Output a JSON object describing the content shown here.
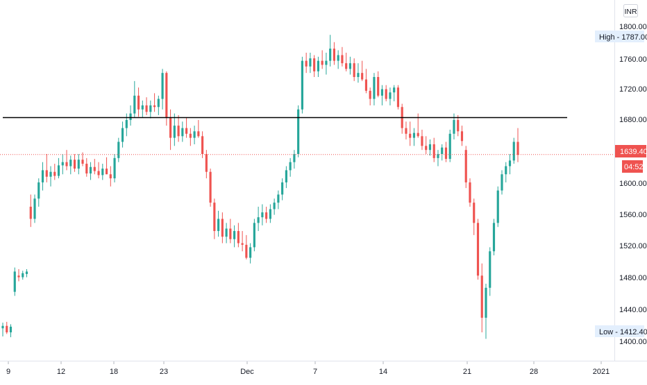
{
  "currency_label": "INR",
  "price_labels": {
    "high": "High - 1787.00",
    "low": "Low - 1412.40",
    "last": "1639.40",
    "countdown": "04:52"
  },
  "colors": {
    "up": "#26a69a",
    "down": "#ef5350",
    "horizontal_line": "#000000",
    "last_price_line": "#ef5350",
    "marker_bg": "#e3effd"
  },
  "chart_data": {
    "type": "candlestick",
    "ylim": [
      1385,
      1830
    ],
    "y_ticks": [
      "1800.00",
      "1760.00",
      "1720.00",
      "1680.00",
      "1600.00",
      "1560.00",
      "1520.00",
      "1480.00",
      "1440.00",
      "1400.00"
    ],
    "x_ticks": [
      "9",
      "12",
      "18",
      "23",
      "Dec",
      "7",
      "14",
      "21",
      "28",
      "2021"
    ],
    "horizontal_line": 1685,
    "last_price": 1639.4,
    "high": 1787.0,
    "low": 1412.4,
    "candles": [
      {
        "o": 1425,
        "h": 1432,
        "l": 1415,
        "c": 1428
      },
      {
        "o": 1428,
        "h": 1433,
        "l": 1418,
        "c": 1420
      },
      {
        "o": 1420,
        "h": 1430,
        "l": 1414,
        "c": 1427
      },
      {
        "o": 1470,
        "h": 1500,
        "l": 1465,
        "c": 1495
      },
      {
        "o": 1490,
        "h": 1498,
        "l": 1483,
        "c": 1488
      },
      {
        "o": 1488,
        "h": 1496,
        "l": 1485,
        "c": 1493
      },
      {
        "o": 1492,
        "h": 1498,
        "l": 1488,
        "c": 1495
      },
      {
        "o": 1575,
        "h": 1590,
        "l": 1550,
        "c": 1560
      },
      {
        "o": 1560,
        "h": 1590,
        "l": 1555,
        "c": 1585
      },
      {
        "o": 1585,
        "h": 1610,
        "l": 1575,
        "c": 1605
      },
      {
        "o": 1605,
        "h": 1630,
        "l": 1595,
        "c": 1620
      },
      {
        "o": 1620,
        "h": 1640,
        "l": 1605,
        "c": 1612
      },
      {
        "o": 1612,
        "h": 1625,
        "l": 1600,
        "c": 1618
      },
      {
        "o": 1618,
        "h": 1628,
        "l": 1608,
        "c": 1613
      },
      {
        "o": 1613,
        "h": 1635,
        "l": 1610,
        "c": 1626
      },
      {
        "o": 1626,
        "h": 1640,
        "l": 1615,
        "c": 1630
      },
      {
        "o": 1630,
        "h": 1645,
        "l": 1620,
        "c": 1625
      },
      {
        "o": 1625,
        "h": 1638,
        "l": 1615,
        "c": 1633
      },
      {
        "o": 1633,
        "h": 1640,
        "l": 1618,
        "c": 1622
      },
      {
        "o": 1622,
        "h": 1640,
        "l": 1615,
        "c": 1633
      },
      {
        "o": 1633,
        "h": 1642,
        "l": 1625,
        "c": 1628
      },
      {
        "o": 1628,
        "h": 1635,
        "l": 1612,
        "c": 1616
      },
      {
        "o": 1616,
        "h": 1630,
        "l": 1608,
        "c": 1624
      },
      {
        "o": 1624,
        "h": 1634,
        "l": 1615,
        "c": 1619
      },
      {
        "o": 1619,
        "h": 1630,
        "l": 1610,
        "c": 1614
      },
      {
        "o": 1614,
        "h": 1628,
        "l": 1608,
        "c": 1622
      },
      {
        "o": 1622,
        "h": 1636,
        "l": 1615,
        "c": 1615
      },
      {
        "o": 1615,
        "h": 1625,
        "l": 1600,
        "c": 1610
      },
      {
        "o": 1610,
        "h": 1640,
        "l": 1605,
        "c": 1635
      },
      {
        "o": 1635,
        "h": 1660,
        "l": 1630,
        "c": 1655
      },
      {
        "o": 1655,
        "h": 1680,
        "l": 1648,
        "c": 1672
      },
      {
        "o": 1672,
        "h": 1690,
        "l": 1662,
        "c": 1682
      },
      {
        "o": 1682,
        "h": 1700,
        "l": 1675,
        "c": 1690
      },
      {
        "o": 1690,
        "h": 1730,
        "l": 1685,
        "c": 1712
      },
      {
        "o": 1712,
        "h": 1722,
        "l": 1686,
        "c": 1695
      },
      {
        "o": 1695,
        "h": 1706,
        "l": 1685,
        "c": 1700
      },
      {
        "o": 1700,
        "h": 1710,
        "l": 1688,
        "c": 1692
      },
      {
        "o": 1692,
        "h": 1706,
        "l": 1684,
        "c": 1700
      },
      {
        "o": 1700,
        "h": 1715,
        "l": 1692,
        "c": 1698
      },
      {
        "o": 1698,
        "h": 1712,
        "l": 1688,
        "c": 1708
      },
      {
        "o": 1708,
        "h": 1745,
        "l": 1695,
        "c": 1740
      },
      {
        "o": 1740,
        "h": 1742,
        "l": 1675,
        "c": 1685
      },
      {
        "o": 1685,
        "h": 1695,
        "l": 1645,
        "c": 1660
      },
      {
        "o": 1660,
        "h": 1690,
        "l": 1650,
        "c": 1675
      },
      {
        "o": 1675,
        "h": 1688,
        "l": 1655,
        "c": 1662
      },
      {
        "o": 1662,
        "h": 1680,
        "l": 1655,
        "c": 1672
      },
      {
        "o": 1672,
        "h": 1685,
        "l": 1660,
        "c": 1665
      },
      {
        "o": 1665,
        "h": 1672,
        "l": 1650,
        "c": 1660
      },
      {
        "o": 1660,
        "h": 1675,
        "l": 1652,
        "c": 1668
      },
      {
        "o": 1668,
        "h": 1682,
        "l": 1660,
        "c": 1662
      },
      {
        "o": 1662,
        "h": 1668,
        "l": 1635,
        "c": 1640
      },
      {
        "o": 1640,
        "h": 1645,
        "l": 1610,
        "c": 1618
      },
      {
        "o": 1618,
        "h": 1622,
        "l": 1575,
        "c": 1580
      },
      {
        "o": 1580,
        "h": 1585,
        "l": 1535,
        "c": 1545
      },
      {
        "o": 1545,
        "h": 1570,
        "l": 1538,
        "c": 1560
      },
      {
        "o": 1560,
        "h": 1568,
        "l": 1530,
        "c": 1538
      },
      {
        "o": 1538,
        "h": 1555,
        "l": 1530,
        "c": 1548
      },
      {
        "o": 1548,
        "h": 1560,
        "l": 1530,
        "c": 1535
      },
      {
        "o": 1535,
        "h": 1552,
        "l": 1525,
        "c": 1545
      },
      {
        "o": 1545,
        "h": 1555,
        "l": 1525,
        "c": 1530
      },
      {
        "o": 1530,
        "h": 1545,
        "l": 1520,
        "c": 1528
      },
      {
        "o": 1528,
        "h": 1540,
        "l": 1510,
        "c": 1512
      },
      {
        "o": 1512,
        "h": 1530,
        "l": 1505,
        "c": 1525
      },
      {
        "o": 1525,
        "h": 1560,
        "l": 1520,
        "c": 1555
      },
      {
        "o": 1555,
        "h": 1575,
        "l": 1545,
        "c": 1562
      },
      {
        "o": 1562,
        "h": 1578,
        "l": 1552,
        "c": 1568
      },
      {
        "o": 1568,
        "h": 1575,
        "l": 1555,
        "c": 1560
      },
      {
        "o": 1560,
        "h": 1578,
        "l": 1555,
        "c": 1572
      },
      {
        "o": 1572,
        "h": 1585,
        "l": 1565,
        "c": 1580
      },
      {
        "o": 1580,
        "h": 1595,
        "l": 1572,
        "c": 1590
      },
      {
        "o": 1590,
        "h": 1610,
        "l": 1583,
        "c": 1605
      },
      {
        "o": 1605,
        "h": 1625,
        "l": 1598,
        "c": 1620
      },
      {
        "o": 1620,
        "h": 1635,
        "l": 1612,
        "c": 1630
      },
      {
        "o": 1630,
        "h": 1645,
        "l": 1622,
        "c": 1640
      },
      {
        "o": 1640,
        "h": 1700,
        "l": 1636,
        "c": 1695
      },
      {
        "o": 1695,
        "h": 1760,
        "l": 1690,
        "c": 1755
      },
      {
        "o": 1755,
        "h": 1765,
        "l": 1740,
        "c": 1748
      },
      {
        "o": 1748,
        "h": 1765,
        "l": 1740,
        "c": 1758
      },
      {
        "o": 1758,
        "h": 1762,
        "l": 1735,
        "c": 1742
      },
      {
        "o": 1742,
        "h": 1760,
        "l": 1735,
        "c": 1755
      },
      {
        "o": 1755,
        "h": 1768,
        "l": 1745,
        "c": 1750
      },
      {
        "o": 1750,
        "h": 1765,
        "l": 1738,
        "c": 1755
      },
      {
        "o": 1755,
        "h": 1787,
        "l": 1748,
        "c": 1770
      },
      {
        "o": 1770,
        "h": 1778,
        "l": 1750,
        "c": 1755
      },
      {
        "o": 1755,
        "h": 1768,
        "l": 1745,
        "c": 1762
      },
      {
        "o": 1762,
        "h": 1772,
        "l": 1748,
        "c": 1752
      },
      {
        "o": 1752,
        "h": 1765,
        "l": 1742,
        "c": 1745
      },
      {
        "o": 1745,
        "h": 1760,
        "l": 1738,
        "c": 1752
      },
      {
        "o": 1752,
        "h": 1758,
        "l": 1730,
        "c": 1735
      },
      {
        "o": 1735,
        "h": 1752,
        "l": 1728,
        "c": 1740
      },
      {
        "o": 1740,
        "h": 1755,
        "l": 1730,
        "c": 1732
      },
      {
        "o": 1732,
        "h": 1745,
        "l": 1715,
        "c": 1718
      },
      {
        "o": 1718,
        "h": 1722,
        "l": 1700,
        "c": 1708
      },
      {
        "o": 1708,
        "h": 1740,
        "l": 1700,
        "c": 1735
      },
      {
        "o": 1735,
        "h": 1742,
        "l": 1710,
        "c": 1712
      },
      {
        "o": 1712,
        "h": 1725,
        "l": 1700,
        "c": 1720
      },
      {
        "o": 1720,
        "h": 1725,
        "l": 1705,
        "c": 1708
      },
      {
        "o": 1708,
        "h": 1722,
        "l": 1700,
        "c": 1716
      },
      {
        "o": 1716,
        "h": 1725,
        "l": 1705,
        "c": 1722
      },
      {
        "o": 1722,
        "h": 1725,
        "l": 1695,
        "c": 1698
      },
      {
        "o": 1698,
        "h": 1702,
        "l": 1665,
        "c": 1672
      },
      {
        "o": 1672,
        "h": 1680,
        "l": 1658,
        "c": 1665
      },
      {
        "o": 1665,
        "h": 1680,
        "l": 1650,
        "c": 1660
      },
      {
        "o": 1660,
        "h": 1672,
        "l": 1650,
        "c": 1666
      },
      {
        "o": 1666,
        "h": 1690,
        "l": 1660,
        "c": 1662
      },
      {
        "o": 1662,
        "h": 1670,
        "l": 1645,
        "c": 1650
      },
      {
        "o": 1650,
        "h": 1662,
        "l": 1640,
        "c": 1645
      },
      {
        "o": 1645,
        "h": 1658,
        "l": 1638,
        "c": 1652
      },
      {
        "o": 1652,
        "h": 1660,
        "l": 1630,
        "c": 1635
      },
      {
        "o": 1635,
        "h": 1645,
        "l": 1625,
        "c": 1640
      },
      {
        "o": 1640,
        "h": 1652,
        "l": 1632,
        "c": 1648
      },
      {
        "o": 1648,
        "h": 1655,
        "l": 1630,
        "c": 1634
      },
      {
        "o": 1634,
        "h": 1670,
        "l": 1630,
        "c": 1665
      },
      {
        "o": 1665,
        "h": 1690,
        "l": 1658,
        "c": 1682
      },
      {
        "o": 1682,
        "h": 1688,
        "l": 1662,
        "c": 1668
      },
      {
        "o": 1668,
        "h": 1675,
        "l": 1650,
        "c": 1656
      },
      {
        "o": 1645,
        "h": 1650,
        "l": 1598,
        "c": 1605
      },
      {
        "o": 1605,
        "h": 1610,
        "l": 1575,
        "c": 1580
      },
      {
        "o": 1580,
        "h": 1585,
        "l": 1540,
        "c": 1555
      },
      {
        "o": 1555,
        "h": 1560,
        "l": 1485,
        "c": 1490
      },
      {
        "o": 1490,
        "h": 1505,
        "l": 1420,
        "c": 1438
      },
      {
        "o": 1438,
        "h": 1480,
        "l": 1412,
        "c": 1475
      },
      {
        "o": 1475,
        "h": 1525,
        "l": 1465,
        "c": 1520
      },
      {
        "o": 1520,
        "h": 1560,
        "l": 1515,
        "c": 1555
      },
      {
        "o": 1555,
        "h": 1600,
        "l": 1550,
        "c": 1595
      },
      {
        "o": 1595,
        "h": 1620,
        "l": 1590,
        "c": 1615
      },
      {
        "o": 1615,
        "h": 1630,
        "l": 1605,
        "c": 1625
      },
      {
        "o": 1625,
        "h": 1640,
        "l": 1615,
        "c": 1632
      },
      {
        "o": 1632,
        "h": 1660,
        "l": 1628,
        "c": 1655
      },
      {
        "o": 1655,
        "h": 1672,
        "l": 1630,
        "c": 1639
      }
    ]
  }
}
